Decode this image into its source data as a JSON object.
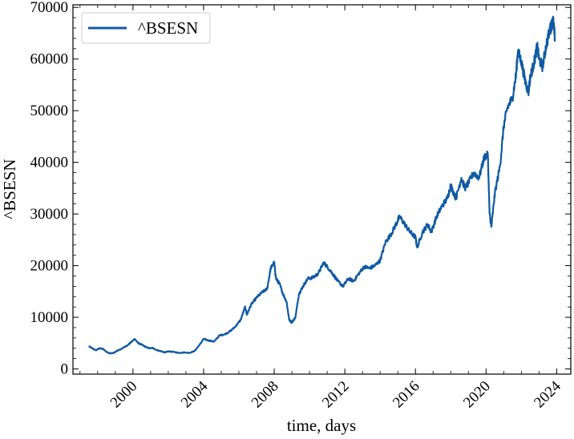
{
  "chart_data": {
    "type": "line",
    "title": "",
    "xlabel": "time, days",
    "ylabel": "^BSESN",
    "xlim": [
      1996.6,
      2024.8
    ],
    "ylim": [
      -1000,
      70500
    ],
    "x_ticks": [
      2000,
      2004,
      2008,
      2012,
      2016,
      2020,
      2024
    ],
    "x_tick_labels": [
      "2000",
      "2004",
      "2008",
      "2012",
      "2016",
      "2020",
      "2024"
    ],
    "y_ticks": [
      0,
      10000,
      20000,
      30000,
      40000,
      50000,
      60000,
      70000
    ],
    "y_tick_labels": [
      "0",
      "10000",
      "20000",
      "30000",
      "40000",
      "50000",
      "60000",
      "70000"
    ],
    "grid": false,
    "legend_position": "top-left",
    "series": [
      {
        "name": "^BSESN",
        "color": "#0f5aa3",
        "x": [
          1997.5,
          1997.7,
          1997.9,
          1998.1,
          1998.3,
          1998.5,
          1998.7,
          1998.9,
          1999.1,
          1999.3,
          1999.5,
          1999.7,
          1999.9,
          2000.1,
          2000.3,
          2000.5,
          2000.7,
          2000.9,
          2001.1,
          2001.3,
          2001.6,
          2001.8,
          2002.0,
          2002.3,
          2002.6,
          2002.9,
          2003.2,
          2003.5,
          2003.8,
          2004.0,
          2004.3,
          2004.6,
          2004.9,
          2005.2,
          2005.5,
          2005.8,
          2006.1,
          2006.35,
          2006.45,
          2006.7,
          2007.0,
          2007.3,
          2007.6,
          2007.8,
          2008.0,
          2008.1,
          2008.3,
          2008.5,
          2008.7,
          2008.85,
          2009.0,
          2009.2,
          2009.4,
          2009.6,
          2009.9,
          2010.2,
          2010.5,
          2010.8,
          2011.0,
          2011.3,
          2011.6,
          2011.9,
          2012.2,
          2012.5,
          2012.8,
          2013.1,
          2013.4,
          2013.7,
          2014.0,
          2014.3,
          2014.6,
          2014.9,
          2015.1,
          2015.4,
          2015.7,
          2016.0,
          2016.1,
          2016.4,
          2016.7,
          2016.9,
          2017.2,
          2017.5,
          2017.8,
          2018.0,
          2018.3,
          2018.6,
          2018.8,
          2019.0,
          2019.3,
          2019.6,
          2019.9,
          2020.1,
          2020.2,
          2020.3,
          2020.5,
          2020.8,
          2021.0,
          2021.2,
          2021.5,
          2021.7,
          2021.8,
          2022.0,
          2022.2,
          2022.4,
          2022.5,
          2022.7,
          2022.9,
          2023.0,
          2023.2,
          2023.4,
          2023.6,
          2023.7,
          2023.8,
          2023.9
        ],
        "values": [
          4400,
          4000,
          3600,
          4000,
          3900,
          3300,
          3000,
          3100,
          3500,
          3800,
          4200,
          4600,
          5200,
          5800,
          5000,
          4700,
          4300,
          4000,
          4100,
          3700,
          3400,
          3200,
          3400,
          3300,
          3100,
          3200,
          3100,
          3500,
          4800,
          5800,
          5500,
          5300,
          6500,
          6700,
          7300,
          8200,
          9500,
          12000,
          10500,
          12500,
          13800,
          14800,
          15500,
          19500,
          20600,
          17500,
          16500,
          14500,
          13000,
          9500,
          9000,
          10000,
          14500,
          15800,
          17500,
          17700,
          18500,
          20600,
          19800,
          18500,
          17000,
          16000,
          17500,
          17000,
          18500,
          19800,
          19500,
          20000,
          21000,
          24500,
          26000,
          28000,
          29500,
          28000,
          26500,
          25500,
          23500,
          26500,
          28000,
          26500,
          29500,
          31500,
          33000,
          35500,
          33000,
          37000,
          35000,
          36000,
          38000,
          37000,
          41000,
          41500,
          30000,
          27500,
          34000,
          39500,
          47000,
          50500,
          52500,
          57000,
          61500,
          59500,
          56000,
          53500,
          56500,
          59000,
          62500,
          60000,
          58500,
          62500,
          65500,
          66500,
          67500,
          64000
        ]
      }
    ]
  }
}
